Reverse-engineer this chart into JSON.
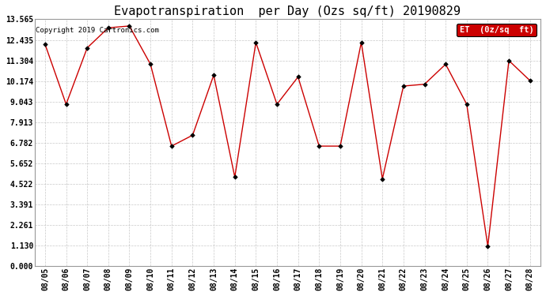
{
  "title": "Evapotranspiration  per Day (Ozs sq/ft) 20190829",
  "copyright": "Copyright 2019 Cartronics.com",
  "legend_label": "ET  (0z/sq  ft)",
  "x_labels": [
    "08/05",
    "08/06",
    "08/07",
    "08/08",
    "08/09",
    "08/10",
    "08/11",
    "08/12",
    "08/13",
    "08/14",
    "08/15",
    "08/16",
    "08/17",
    "08/18",
    "08/19",
    "08/20",
    "08/21",
    "08/22",
    "08/23",
    "08/24",
    "08/25",
    "08/26",
    "08/27",
    "08/28"
  ],
  "y_values": [
    12.2,
    8.9,
    12.0,
    13.1,
    13.2,
    11.1,
    6.6,
    7.2,
    10.5,
    4.9,
    12.3,
    8.9,
    10.4,
    6.6,
    6.6,
    12.3,
    4.8,
    9.9,
    10.0,
    11.1,
    8.9,
    1.1,
    11.3,
    10.2
  ],
  "y_ticks": [
    0.0,
    1.13,
    2.261,
    3.391,
    4.522,
    5.652,
    6.782,
    7.913,
    9.043,
    10.174,
    11.304,
    12.435,
    13.565
  ],
  "line_color": "#cc0000",
  "marker_color": "#000000",
  "background_color": "#ffffff",
  "grid_color": "#bbbbbb",
  "title_fontsize": 11,
  "copyright_fontsize": 6.5,
  "tick_fontsize": 7,
  "legend_bg": "#cc0000",
  "legend_fg": "#ffffff",
  "legend_fontsize": 7.5
}
